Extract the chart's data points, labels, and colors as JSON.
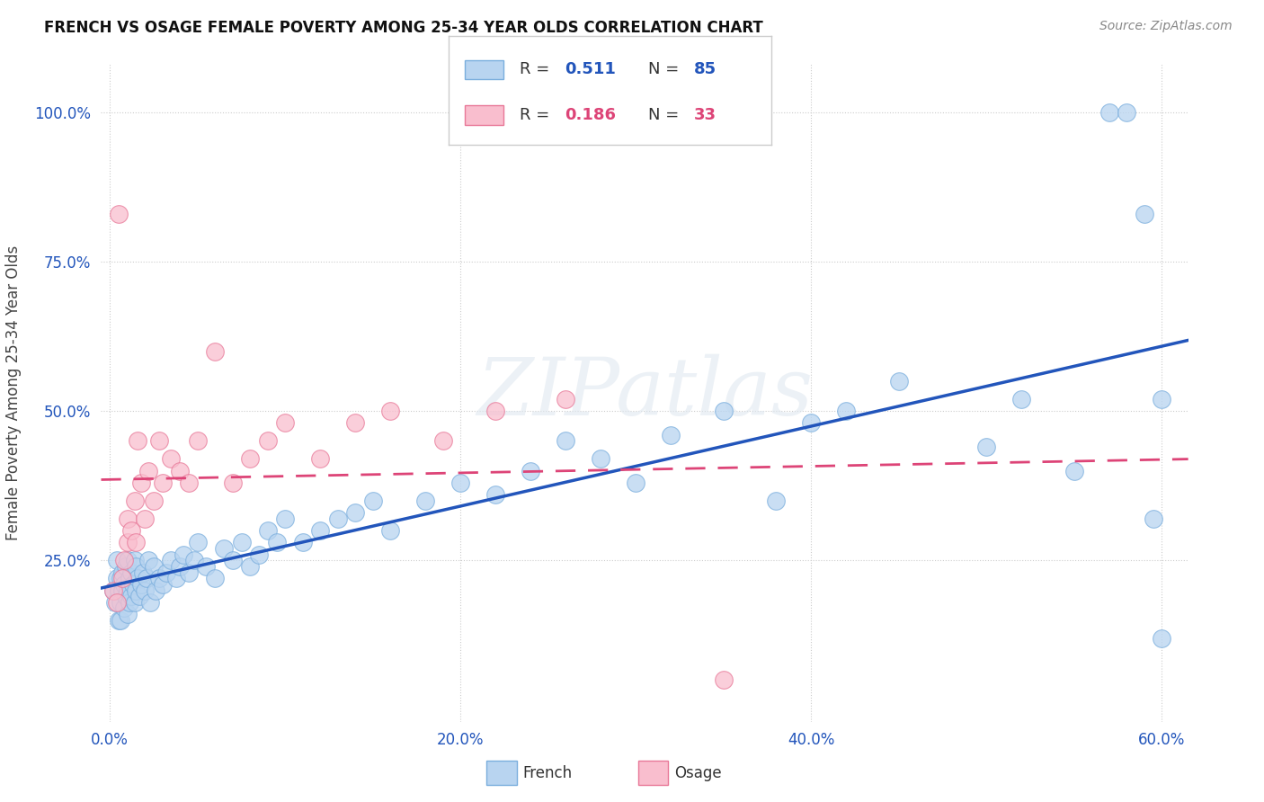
{
  "title": "FRENCH VS OSAGE FEMALE POVERTY AMONG 25-34 YEAR OLDS CORRELATION CHART",
  "source": "Source: ZipAtlas.com",
  "ylabel": "Female Poverty Among 25-34 Year Olds",
  "xlim": [
    -0.005,
    0.615
  ],
  "ylim": [
    -0.02,
    1.08
  ],
  "xticks": [
    0.0,
    0.2,
    0.4,
    0.6
  ],
  "xtick_labels": [
    "0.0%",
    "20.0%",
    "40.0%",
    "60.0%"
  ],
  "yticks": [
    0.25,
    0.5,
    0.75,
    1.0
  ],
  "ytick_labels": [
    "25.0%",
    "50.0%",
    "75.0%",
    "100.0%"
  ],
  "french_color": "#b8d4f0",
  "french_edge": "#7aaedd",
  "osage_color": "#f9bece",
  "osage_edge": "#e87898",
  "trend_french_color": "#2255bb",
  "trend_osage_color": "#dd4477",
  "ytick_color": "#2255bb",
  "xtick_color": "#2255bb",
  "watermark": "ZIPatlas",
  "R_french": "0.511",
  "N_french": "85",
  "R_osage": "0.186",
  "N_osage": "33",
  "label_french": "French",
  "label_osage": "Osage",
  "french_x": [
    0.002,
    0.003,
    0.004,
    0.004,
    0.005,
    0.005,
    0.006,
    0.006,
    0.006,
    0.007,
    0.007,
    0.008,
    0.008,
    0.009,
    0.009,
    0.01,
    0.01,
    0.01,
    0.011,
    0.011,
    0.012,
    0.012,
    0.013,
    0.014,
    0.014,
    0.015,
    0.015,
    0.016,
    0.017,
    0.018,
    0.019,
    0.02,
    0.021,
    0.022,
    0.023,
    0.025,
    0.026,
    0.028,
    0.03,
    0.032,
    0.035,
    0.038,
    0.04,
    0.042,
    0.045,
    0.048,
    0.05,
    0.055,
    0.06,
    0.065,
    0.07,
    0.075,
    0.08,
    0.085,
    0.09,
    0.095,
    0.1,
    0.11,
    0.12,
    0.13,
    0.14,
    0.15,
    0.16,
    0.18,
    0.2,
    0.22,
    0.24,
    0.26,
    0.28,
    0.3,
    0.32,
    0.35,
    0.38,
    0.4,
    0.42,
    0.45,
    0.5,
    0.52,
    0.55,
    0.57,
    0.58,
    0.59,
    0.595,
    0.6,
    0.6
  ],
  "french_y": [
    0.2,
    0.18,
    0.22,
    0.25,
    0.15,
    0.2,
    0.18,
    0.22,
    0.15,
    0.2,
    0.23,
    0.17,
    0.21,
    0.19,
    0.24,
    0.16,
    0.2,
    0.25,
    0.18,
    0.22,
    0.19,
    0.23,
    0.21,
    0.18,
    0.25,
    0.2,
    0.24,
    0.22,
    0.19,
    0.21,
    0.23,
    0.2,
    0.22,
    0.25,
    0.18,
    0.24,
    0.2,
    0.22,
    0.21,
    0.23,
    0.25,
    0.22,
    0.24,
    0.26,
    0.23,
    0.25,
    0.28,
    0.24,
    0.22,
    0.27,
    0.25,
    0.28,
    0.24,
    0.26,
    0.3,
    0.28,
    0.32,
    0.28,
    0.3,
    0.32,
    0.33,
    0.35,
    0.3,
    0.35,
    0.38,
    0.36,
    0.4,
    0.45,
    0.42,
    0.38,
    0.46,
    0.5,
    0.35,
    0.48,
    0.5,
    0.55,
    0.44,
    0.52,
    0.4,
    1.0,
    1.0,
    0.83,
    0.32,
    0.52,
    0.12
  ],
  "osage_x": [
    0.002,
    0.004,
    0.005,
    0.007,
    0.008,
    0.01,
    0.01,
    0.012,
    0.014,
    0.015,
    0.016,
    0.018,
    0.02,
    0.022,
    0.025,
    0.028,
    0.03,
    0.035,
    0.04,
    0.045,
    0.05,
    0.06,
    0.07,
    0.08,
    0.09,
    0.1,
    0.12,
    0.14,
    0.16,
    0.19,
    0.22,
    0.26,
    0.35
  ],
  "osage_y": [
    0.2,
    0.18,
    0.83,
    0.22,
    0.25,
    0.28,
    0.32,
    0.3,
    0.35,
    0.28,
    0.45,
    0.38,
    0.32,
    0.4,
    0.35,
    0.45,
    0.38,
    0.42,
    0.4,
    0.38,
    0.45,
    0.6,
    0.38,
    0.42,
    0.45,
    0.48,
    0.42,
    0.48,
    0.5,
    0.45,
    0.5,
    0.52,
    0.05
  ]
}
